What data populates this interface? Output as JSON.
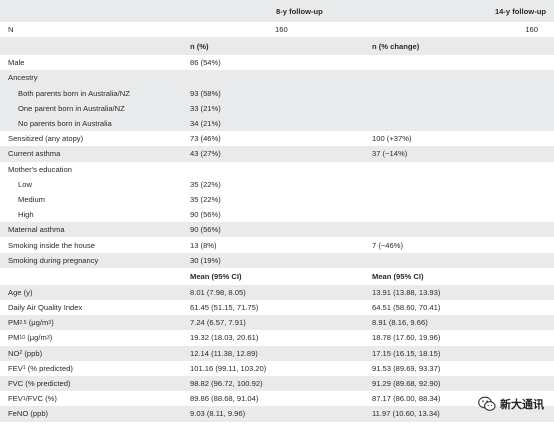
{
  "header": {
    "followup_8": "8-y follow-up",
    "followup_14": "14-y follow-up"
  },
  "n_row": {
    "label": "N",
    "n_8": "160",
    "n_14": "160"
  },
  "section_headers": {
    "count_8": "n (%)",
    "count_14": "n (% change)",
    "mean_8": "Mean (95% CI)",
    "mean_14": "Mean (95% CI)"
  },
  "rows": {
    "male": {
      "label": "Male",
      "v8": "86 (54%)",
      "v14": ""
    },
    "ancestry": {
      "label": "Ancestry"
    },
    "both_parents": {
      "label": "Both parents born in Australia/NZ",
      "v8": "93 (58%)"
    },
    "one_parent": {
      "label": "One parent born in Australia/NZ",
      "v8": "33 (21%)"
    },
    "no_parents": {
      "label": "No parents born in Australia",
      "v8": "34 (21%)"
    },
    "sensitized": {
      "label": "Sensitized (any atopy)",
      "v8": "73 (46%)",
      "v14": "100 (+37%)"
    },
    "current_asthma": {
      "label": "Current asthma",
      "v8": "43 (27%)",
      "v14": "37 (−14%)"
    },
    "mothers_education": {
      "label": "Mother's education"
    },
    "low": {
      "label": "Low",
      "v8": "35 (22%)"
    },
    "medium": {
      "label": "Medium",
      "v8": "35 (22%)"
    },
    "high": {
      "label": "High",
      "v8": "90 (56%)"
    },
    "maternal_asthma": {
      "label": "Maternal asthma",
      "v8": "90 (56%)"
    },
    "smoking_house": {
      "label": "Smoking inside the house",
      "v8": "13 (8%)",
      "v14": "7 (−46%)"
    },
    "smoking_pregnancy": {
      "label": "Smoking during pregnancy",
      "v8": "30 (19%)"
    },
    "age": {
      "label": "Age (y)",
      "v8": "8.01 (7.98, 8.05)",
      "v14": "13.91 (13.88, 13.93)"
    },
    "aqi": {
      "label": "Daily Air Quality Index",
      "v8": "61.45 (51.15, 71.75)",
      "v14": "64.51 (58.60, 70.41)"
    },
    "pm25": {
      "label_main": "PM",
      "label_sub": "2.5",
      "label_unit_pre": " (μg/m",
      "label_sup": "3",
      "label_unit_post": ")",
      "v8": "7.24 (6.57, 7.91)",
      "v14": "8.91 (8.16, 9.66)"
    },
    "pm10": {
      "label_main": "PM",
      "label_sub": "10",
      "label_unit_pre": " (μg/m",
      "label_sup": "3",
      "label_unit_post": ")",
      "v8": "19.32 (18.03, 20.61)",
      "v14": "18.78 (17.60, 19.96)"
    },
    "no2": {
      "label_main": "NO",
      "label_sub": "2",
      "label_rest": " (ppb)",
      "v8": "12.14 (11.38, 12.89)",
      "v14": "17.15 (16.15, 18.15)"
    },
    "fev1": {
      "label_main": "FEV",
      "label_sub": "1",
      "label_rest": " (% predicted)",
      "v8": "101.16 (99.11, 103.20)",
      "v14": "91.53 (89.69, 93.37)"
    },
    "fvc": {
      "label": "FVC (% predicted)",
      "v8": "98.82 (96.72, 100.92)",
      "v14": "91.29 (89.68, 92.90)"
    },
    "fev1_fvc": {
      "label_main": "FEV",
      "label_sub": "1",
      "label_rest": "/FVC (%)",
      "v8": "89.86 (88.68, 91.04)",
      "v14": "87.17 (86.00, 88.34)"
    },
    "feno": {
      "label": "FeNO (ppb)",
      "v8": "9.03 (8.11, 9.96)",
      "v14": "11.97 (10.60, 13.34)"
    }
  },
  "watermark": {
    "text": "新大通讯",
    "icon": "wechat-icon"
  }
}
